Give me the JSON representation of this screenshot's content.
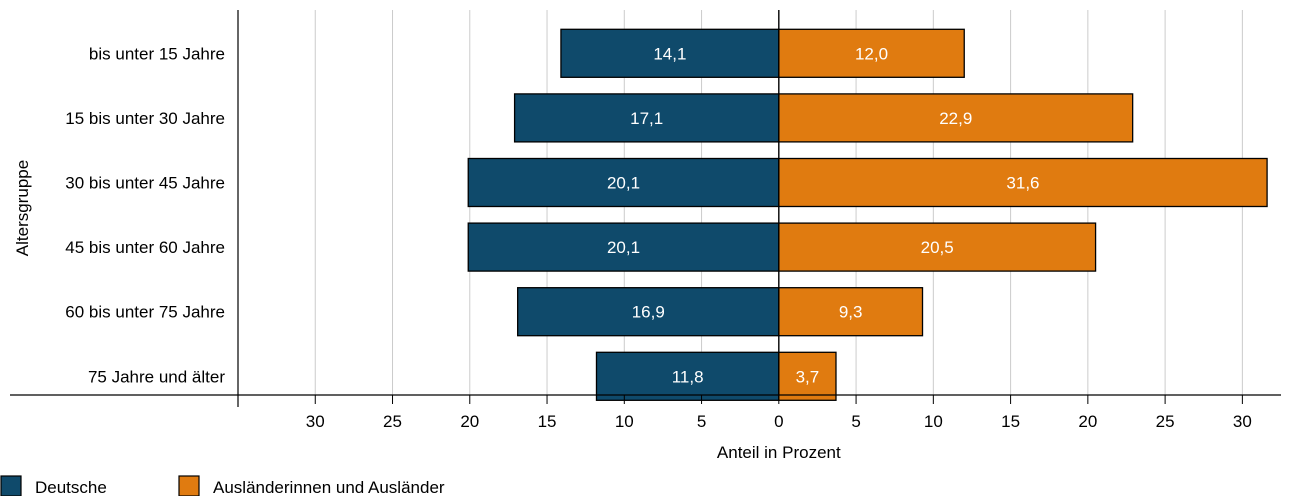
{
  "chart_data": {
    "type": "bar",
    "orientation": "horizontal-diverging",
    "categories": [
      "bis unter 15 Jahre",
      "15 bis unter 30 Jahre",
      "30 bis unter 45 Jahre",
      "45 bis unter 60 Jahre",
      "60 bis unter 75 Jahre",
      "75 Jahre und älter"
    ],
    "series": [
      {
        "name": "Deutsche",
        "color": "#0f4a6b",
        "side": "left",
        "values": [
          14.1,
          17.1,
          20.1,
          20.1,
          16.9,
          11.8
        ],
        "labels": [
          "14,1",
          "17,1",
          "20,1",
          "20,1",
          "16,9",
          "11,8"
        ]
      },
      {
        "name": "Ausländerinnen und Ausländer",
        "color": "#e07b10",
        "side": "right",
        "values": [
          12.0,
          22.9,
          31.6,
          20.5,
          9.3,
          3.7
        ],
        "labels": [
          "12,0",
          "22,9",
          "31,6",
          "20,5",
          "9,3",
          "3,7"
        ]
      }
    ],
    "xlabel": "Anteil in Prozent",
    "ylabel": "Altersgruppe",
    "xlim": [
      -35,
      32.5
    ],
    "xticks": [
      -30,
      -25,
      -20,
      -15,
      -10,
      -5,
      0,
      5,
      10,
      15,
      20,
      25,
      30
    ],
    "xtick_labels": [
      "30",
      "25",
      "20",
      "15",
      "10",
      "5",
      "0",
      "5",
      "10",
      "15",
      "20",
      "25",
      "30"
    ],
    "grid": "vertical",
    "legend": "bottom-left",
    "colors": {
      "grid": "#cccccc",
      "axis": "#000000",
      "label_text": "#ffffff"
    }
  }
}
